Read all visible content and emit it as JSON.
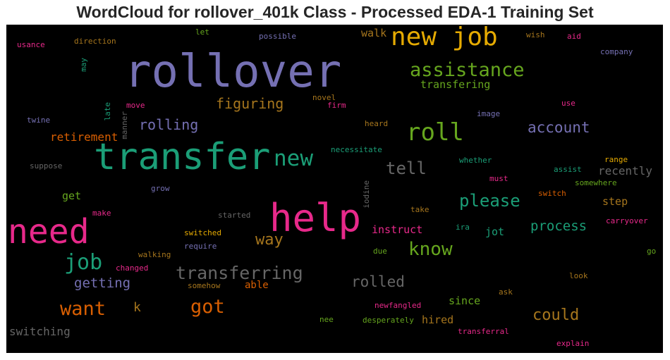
{
  "title": "WordCloud for rollover_401k Class - Processed EDA-1 Training Set",
  "colors": {
    "background": "#000000",
    "purple": "#7570b3",
    "green": "#1b9e77",
    "orange": "#d95f02",
    "magenta": "#e7298a",
    "lime": "#66a61e",
    "gold": "#e6ab02",
    "brown": "#a6761d",
    "gray": "#666666"
  },
  "words": [
    {
      "text": "rollover",
      "color": "#7570b3"
    },
    {
      "text": "new job",
      "color": "#e6ab02"
    },
    {
      "text": "transfer",
      "color": "#1b9e77"
    },
    {
      "text": "help",
      "color": "#e7298a"
    },
    {
      "text": "need",
      "color": "#e7298a"
    },
    {
      "text": "assistance",
      "color": "#66a61e"
    },
    {
      "text": "roll",
      "color": "#66a61e"
    },
    {
      "text": "new",
      "color": "#1b9e77"
    },
    {
      "text": "tell",
      "color": "#666666"
    },
    {
      "text": "job",
      "color": "#1b9e77"
    },
    {
      "text": "know",
      "color": "#66a61e"
    },
    {
      "text": "transferring",
      "color": "#666666"
    },
    {
      "text": "want",
      "color": "#d95f02"
    },
    {
      "text": "got",
      "color": "#d95f02"
    },
    {
      "text": "please",
      "color": "#1b9e77"
    },
    {
      "text": "account",
      "color": "#7570b3"
    },
    {
      "text": "could",
      "color": "#a6761d"
    },
    {
      "text": "rolled",
      "color": "#666666"
    },
    {
      "text": "way",
      "color": "#a6761d"
    },
    {
      "text": "figuring",
      "color": "#a6761d"
    },
    {
      "text": "rolling",
      "color": "#7570b3"
    },
    {
      "text": "getting",
      "color": "#7570b3"
    },
    {
      "text": "process",
      "color": "#1b9e77"
    },
    {
      "text": "retirement",
      "color": "#d95f02"
    },
    {
      "text": "switching",
      "color": "#666666"
    },
    {
      "text": "transfering",
      "color": "#66a61e"
    },
    {
      "text": "walk",
      "color": "#a6761d"
    },
    {
      "text": "recently",
      "color": "#666666"
    },
    {
      "text": "instruct",
      "color": "#e7298a"
    },
    {
      "text": "since",
      "color": "#66a61e"
    },
    {
      "text": "hired",
      "color": "#a6761d"
    },
    {
      "text": "step",
      "color": "#a6761d"
    },
    {
      "text": "k",
      "color": "#a6761d"
    },
    {
      "text": "jot",
      "color": "#1b9e77"
    },
    {
      "text": "get",
      "color": "#66a61e"
    },
    {
      "text": "able",
      "color": "#d95f02"
    },
    {
      "text": "usance",
      "color": "#e7298a"
    },
    {
      "text": "direction",
      "color": "#a6761d"
    },
    {
      "text": "let",
      "color": "#66a61e"
    },
    {
      "text": "possible",
      "color": "#7570b3"
    },
    {
      "text": "wish",
      "color": "#a6761d"
    },
    {
      "text": "aid",
      "color": "#e7298a"
    },
    {
      "text": "company",
      "color": "#7570b3"
    },
    {
      "text": "may",
      "color": "#1b9e77"
    },
    {
      "text": "late",
      "color": "#1b9e77"
    },
    {
      "text": "manner",
      "color": "#666666"
    },
    {
      "text": "move",
      "color": "#e7298a"
    },
    {
      "text": "novel",
      "color": "#a6761d"
    },
    {
      "text": "firm",
      "color": "#e7298a"
    },
    {
      "text": "image",
      "color": "#7570b3"
    },
    {
      "text": "use",
      "color": "#e7298a"
    },
    {
      "text": "twine",
      "color": "#7570b3"
    },
    {
      "text": "heard",
      "color": "#a6761d"
    },
    {
      "text": "necessitate",
      "color": "#1b9e77"
    },
    {
      "text": "suppose",
      "color": "#666666"
    },
    {
      "text": "whether",
      "color": "#1b9e77"
    },
    {
      "text": "assist",
      "color": "#1b9e77"
    },
    {
      "text": "range",
      "color": "#e6ab02"
    },
    {
      "text": "must",
      "color": "#e7298a"
    },
    {
      "text": "somewhere",
      "color": "#66a61e"
    },
    {
      "text": "grow",
      "color": "#7570b3"
    },
    {
      "text": "iodine",
      "color": "#666666"
    },
    {
      "text": "switch",
      "color": "#d95f02"
    },
    {
      "text": "make",
      "color": "#e7298a"
    },
    {
      "text": "started",
      "color": "#666666"
    },
    {
      "text": "take",
      "color": "#a6761d"
    },
    {
      "text": "ira",
      "color": "#1b9e77"
    },
    {
      "text": "carryover",
      "color": "#e7298a"
    },
    {
      "text": "switched",
      "color": "#e6ab02"
    },
    {
      "text": "require",
      "color": "#7570b3"
    },
    {
      "text": "walking",
      "color": "#a6761d"
    },
    {
      "text": "go",
      "color": "#66a61e"
    },
    {
      "text": "due",
      "color": "#66a61e"
    },
    {
      "text": "changed",
      "color": "#e7298a"
    },
    {
      "text": "somehow",
      "color": "#a6761d"
    },
    {
      "text": "look",
      "color": "#a6761d"
    },
    {
      "text": "ask",
      "color": "#a6761d"
    },
    {
      "text": "newfangled",
      "color": "#e7298a"
    },
    {
      "text": "nee",
      "color": "#66a61e"
    },
    {
      "text": "desperately",
      "color": "#66a61e"
    },
    {
      "text": "transferral",
      "color": "#e7298a"
    },
    {
      "text": "explain",
      "color": "#e7298a"
    }
  ]
}
